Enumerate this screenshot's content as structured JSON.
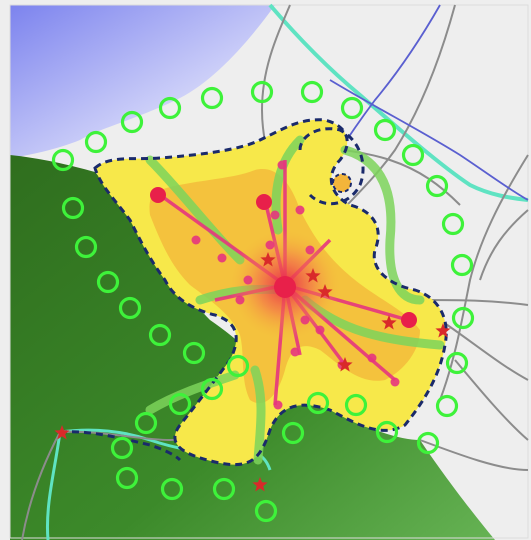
{
  "colors": {
    "sea": "#8f96f0",
    "forest": "#3f8a2c",
    "land": "#ececec",
    "urban_area": "#f7e84a",
    "urban_core": "#f3b53a",
    "boundary": "#1a2a6b",
    "green_ring": "#3ef23a",
    "green_corridor": "#7cd35a",
    "transit_line": "#e5357e",
    "roads": "#8c8c8c",
    "blue_lines": "#5a5fd0",
    "cyan_line": "#5fe3c2",
    "centers": "#e8204a",
    "stars": "#d92a2a"
  },
  "legend": {
    "visible": false
  },
  "icons": [
    "green-ring-icon",
    "star-icon",
    "center-dot-icon"
  ]
}
